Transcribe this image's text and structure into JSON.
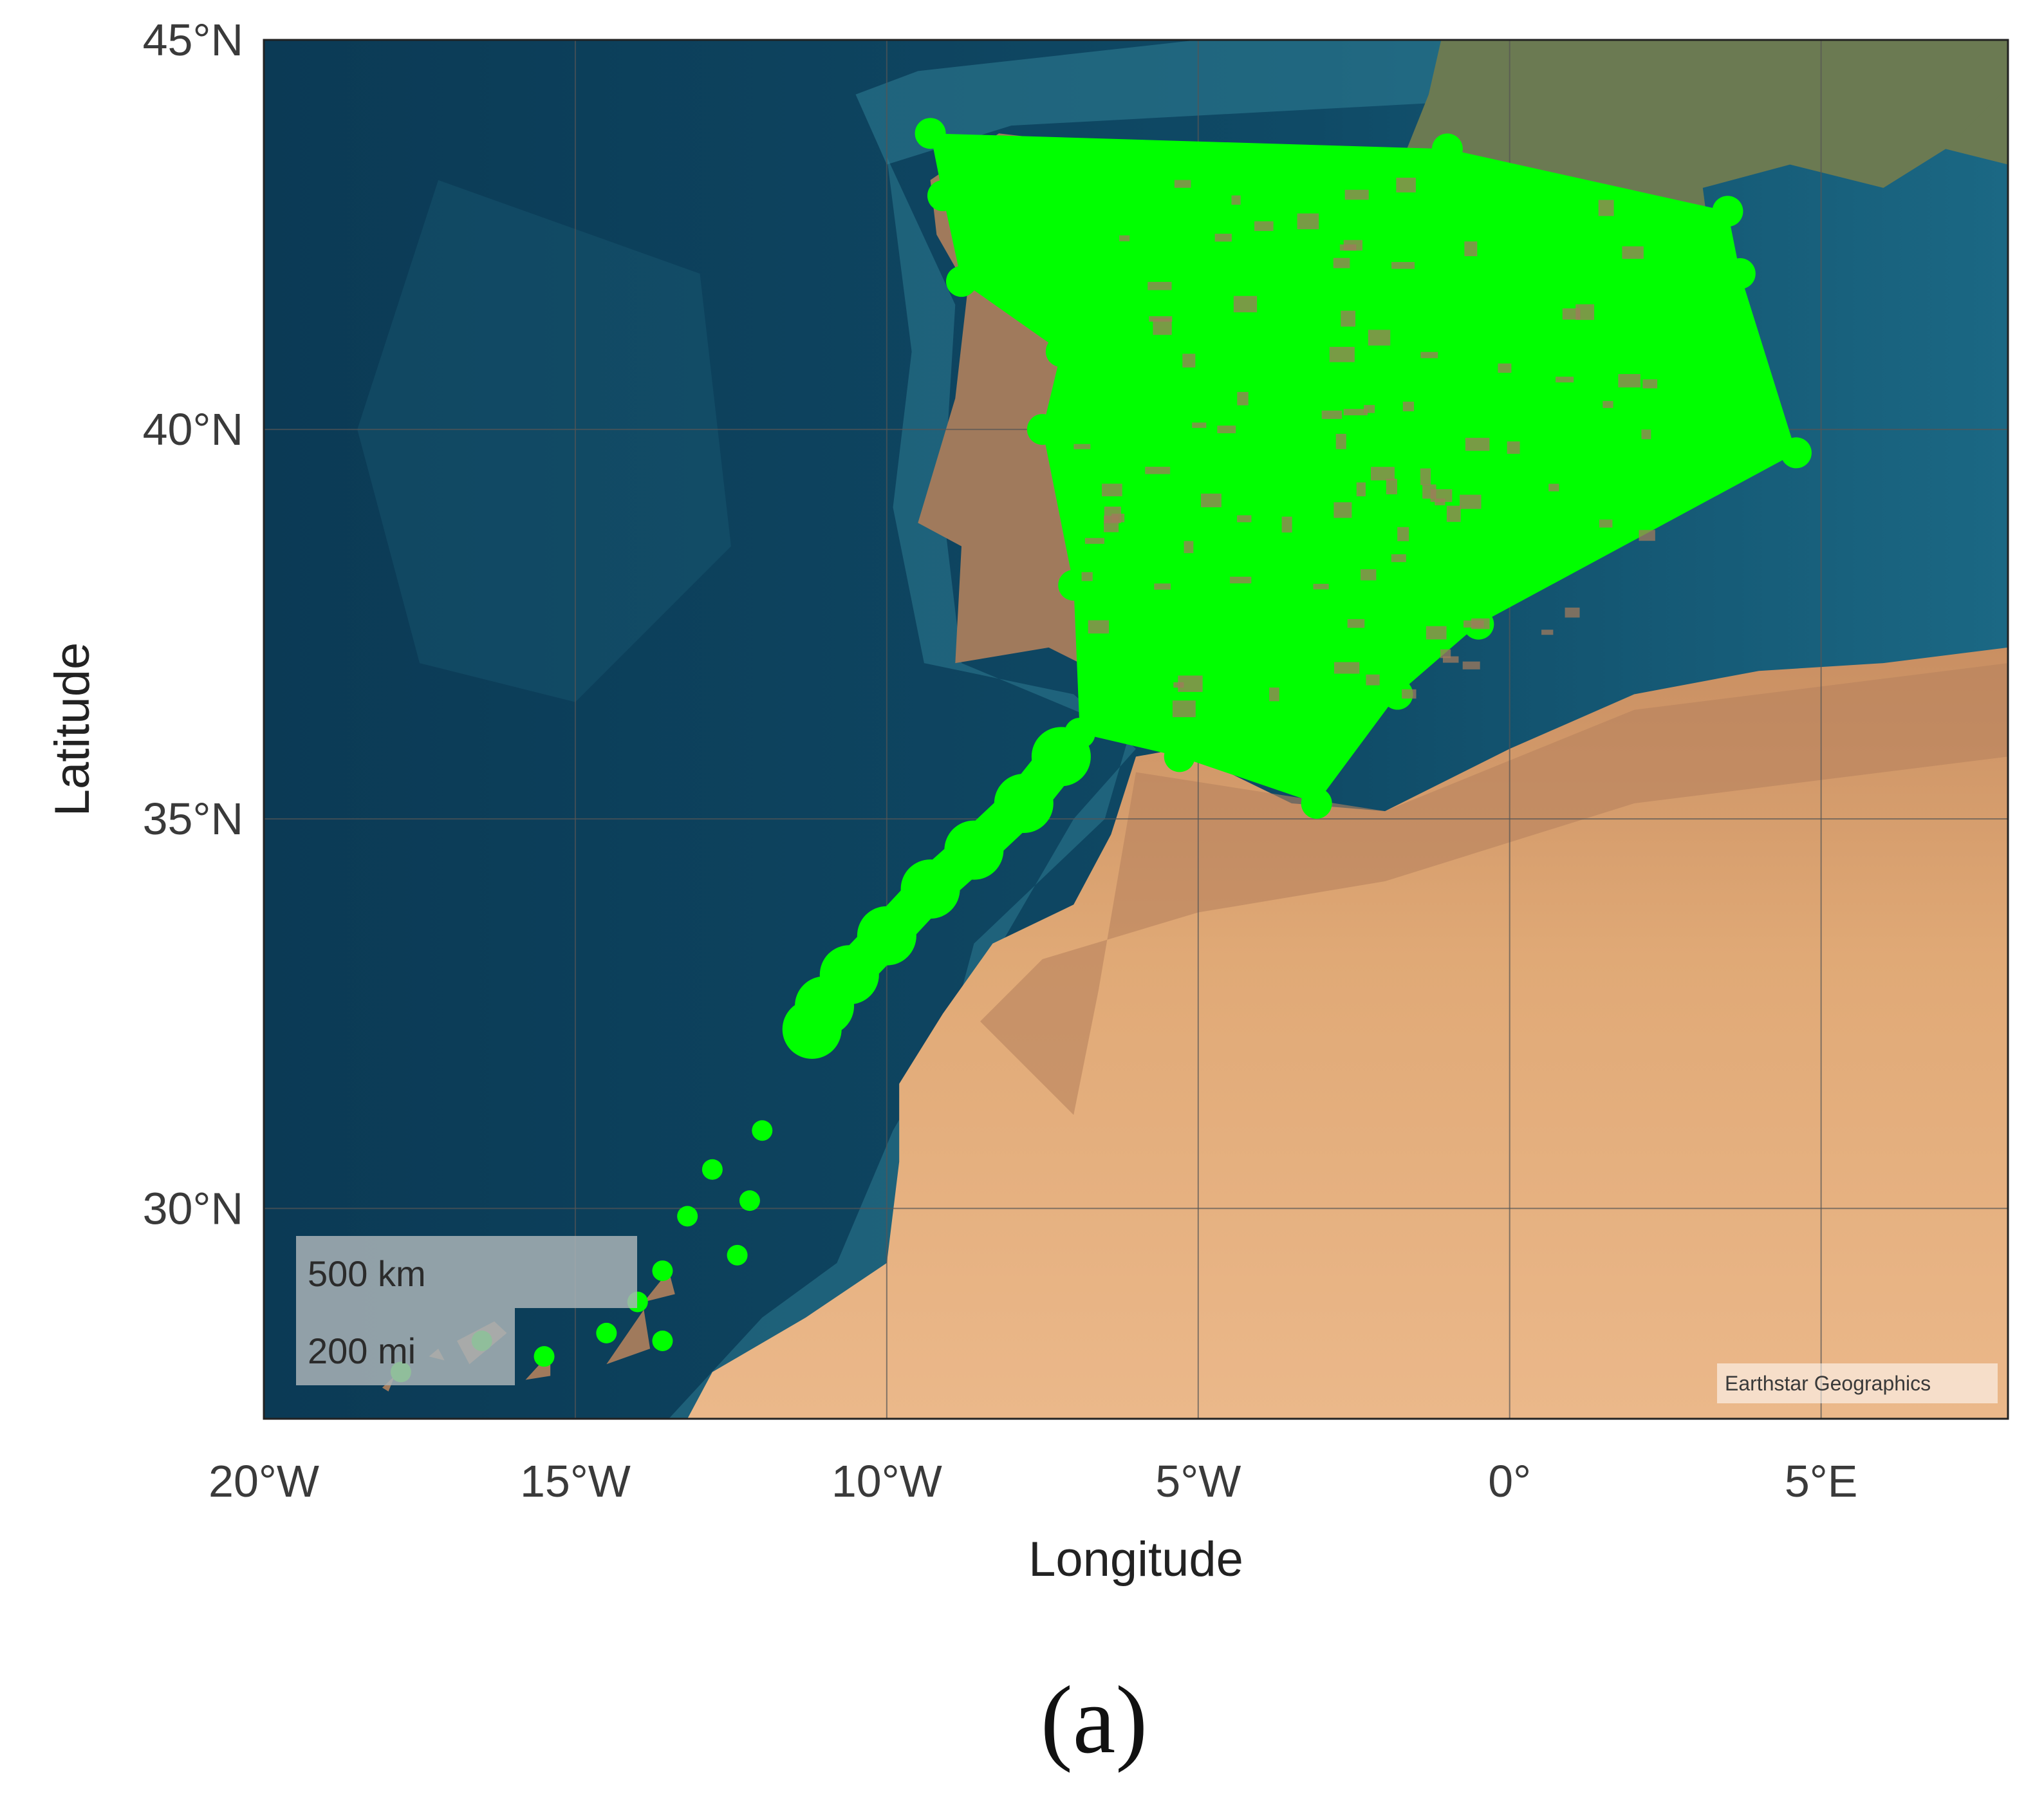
{
  "map": {
    "extent": {
      "lon_min": -20.0,
      "lon_max": 8.0,
      "lat_min": 27.3,
      "lat_max": 45.0
    },
    "x_ticks": [
      {
        "lon": -20,
        "label": "20°W"
      },
      {
        "lon": -15,
        "label": "15°W"
      },
      {
        "lon": -10,
        "label": "10°W"
      },
      {
        "lon": -5,
        "label": "5°W"
      },
      {
        "lon": 0,
        "label": "0°"
      },
      {
        "lon": 5,
        "label": "5°E"
      }
    ],
    "y_ticks": [
      {
        "lat": 45,
        "label": "45°N"
      },
      {
        "lat": 40,
        "label": "40°N"
      },
      {
        "lat": 35,
        "label": "35°N"
      },
      {
        "lat": 30,
        "label": "30°N"
      }
    ],
    "grid": true,
    "xlabel": "Longitude",
    "ylabel": "Latitude",
    "basemap": "satellite imagery",
    "colors": {
      "ocean": "#0f4a66",
      "ocean_shelf": "#2f7f95",
      "land_green": "#6b7a52",
      "land_brown": "#a07a5c",
      "desert": "#e2ad7a",
      "points": "#00ff00",
      "grid": "#555555"
    },
    "scale_bar": {
      "km_label": "500 km",
      "mi_label": "200 mi"
    },
    "attribution": "Earthstar Geographics",
    "points": {
      "color": "#00ff00",
      "coverage_region": [
        [
          -9.3,
          43.8
        ],
        [
          -1.0,
          43.6
        ],
        [
          3.5,
          42.8
        ],
        [
          3.7,
          42.0
        ],
        [
          4.6,
          39.7
        ],
        [
          -0.5,
          37.5
        ],
        [
          -1.8,
          36.6
        ],
        [
          -3.1,
          35.2
        ],
        [
          -5.3,
          35.8
        ],
        [
          -6.9,
          36.1
        ],
        [
          -7.0,
          38.0
        ],
        [
          -7.5,
          40.0
        ],
        [
          -7.2,
          41.0
        ],
        [
          -8.8,
          41.9
        ],
        [
          -9.1,
          43.0
        ]
      ],
      "coastal_trail": [
        [
          -7.2,
          35.8
        ],
        [
          -7.8,
          35.2
        ],
        [
          -8.6,
          34.6
        ],
        [
          -9.3,
          34.1
        ],
        [
          -10.0,
          33.5
        ],
        [
          -10.6,
          33.0
        ],
        [
          -11.0,
          32.6
        ],
        [
          -11.2,
          32.3
        ]
      ],
      "island_clusters": [
        [
          -12.0,
          31.0
        ],
        [
          -12.8,
          30.5
        ],
        [
          -13.2,
          29.9
        ],
        [
          -13.6,
          29.2
        ],
        [
          -14.0,
          28.8
        ],
        [
          -14.5,
          28.4
        ],
        [
          -15.5,
          28.1
        ],
        [
          -16.5,
          28.3
        ],
        [
          -17.8,
          27.9
        ],
        [
          -13.6,
          28.3
        ],
        [
          -12.4,
          29.4
        ],
        [
          -12.2,
          30.1
        ]
      ]
    }
  },
  "caption": "(a)"
}
